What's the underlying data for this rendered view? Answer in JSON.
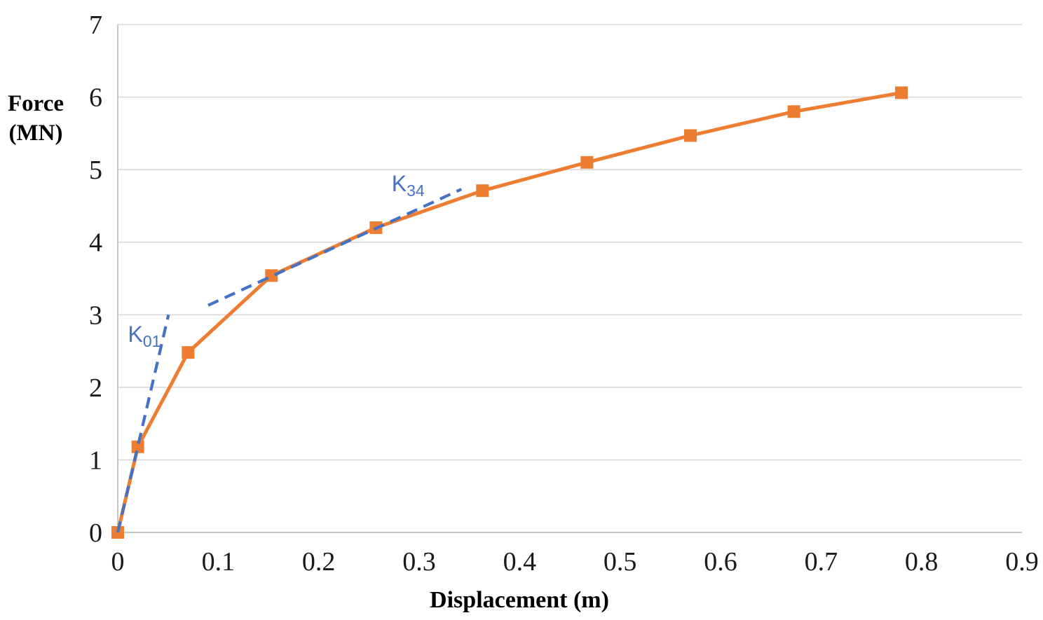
{
  "chart_data": {
    "type": "line",
    "title": "",
    "xlabel": "Displacement (m)",
    "ylabel": "Force (MN)",
    "ylabel_lines": [
      "Force",
      "(MN)"
    ],
    "xlim": [
      0,
      0.9
    ],
    "ylim": [
      0,
      7
    ],
    "xticks": [
      0,
      0.1,
      0.2,
      0.3,
      0.4,
      0.5,
      0.6,
      0.7,
      0.8,
      0.9
    ],
    "xtick_labels": [
      "0",
      "0.1",
      "0.2",
      "0.3",
      "0.4",
      "0.5",
      "0.6",
      "0.7",
      "0.8",
      "0.9"
    ],
    "yticks": [
      0,
      1,
      2,
      3,
      4,
      5,
      6,
      7
    ],
    "ytick_labels": [
      "0",
      "1",
      "2",
      "3",
      "4",
      "5",
      "6",
      "7"
    ],
    "grid": "horizontal-only",
    "legend": "none",
    "series": [
      {
        "name": "force-displacement curve",
        "type": "line+markers",
        "marker": "square",
        "color": "#ED7D31",
        "points": [
          [
            0,
            0
          ],
          [
            0.02,
            1.18
          ],
          [
            0.07,
            2.48
          ],
          [
            0.153,
            3.54
          ],
          [
            0.257,
            4.2
          ],
          [
            0.363,
            4.71
          ],
          [
            0.467,
            5.1
          ],
          [
            0.57,
            5.47
          ],
          [
            0.673,
            5.8
          ],
          [
            0.78,
            6.06
          ]
        ]
      }
    ],
    "stiffness_lines": [
      {
        "name": "K01",
        "label_main": "K",
        "label_sub": "01",
        "color": "#4472C4",
        "style": "dashed",
        "from": [
          0,
          0
        ],
        "to": [
          0.0505,
          3.0
        ],
        "label_at": [
          0.0265,
          2.68
        ]
      },
      {
        "name": "K34",
        "label_main": "K",
        "label_sub": "34",
        "color": "#4472C4",
        "style": "dashed",
        "from": [
          0.09,
          3.13
        ],
        "to": [
          0.342,
          4.73
        ],
        "label_at": [
          0.289,
          4.76
        ]
      }
    ],
    "colors": {
      "series": "#ED7D31",
      "stiffness": "#4472C4",
      "gridline": "#D9D9D9",
      "axis": "#BFBFBF",
      "text": "#000000"
    }
  }
}
